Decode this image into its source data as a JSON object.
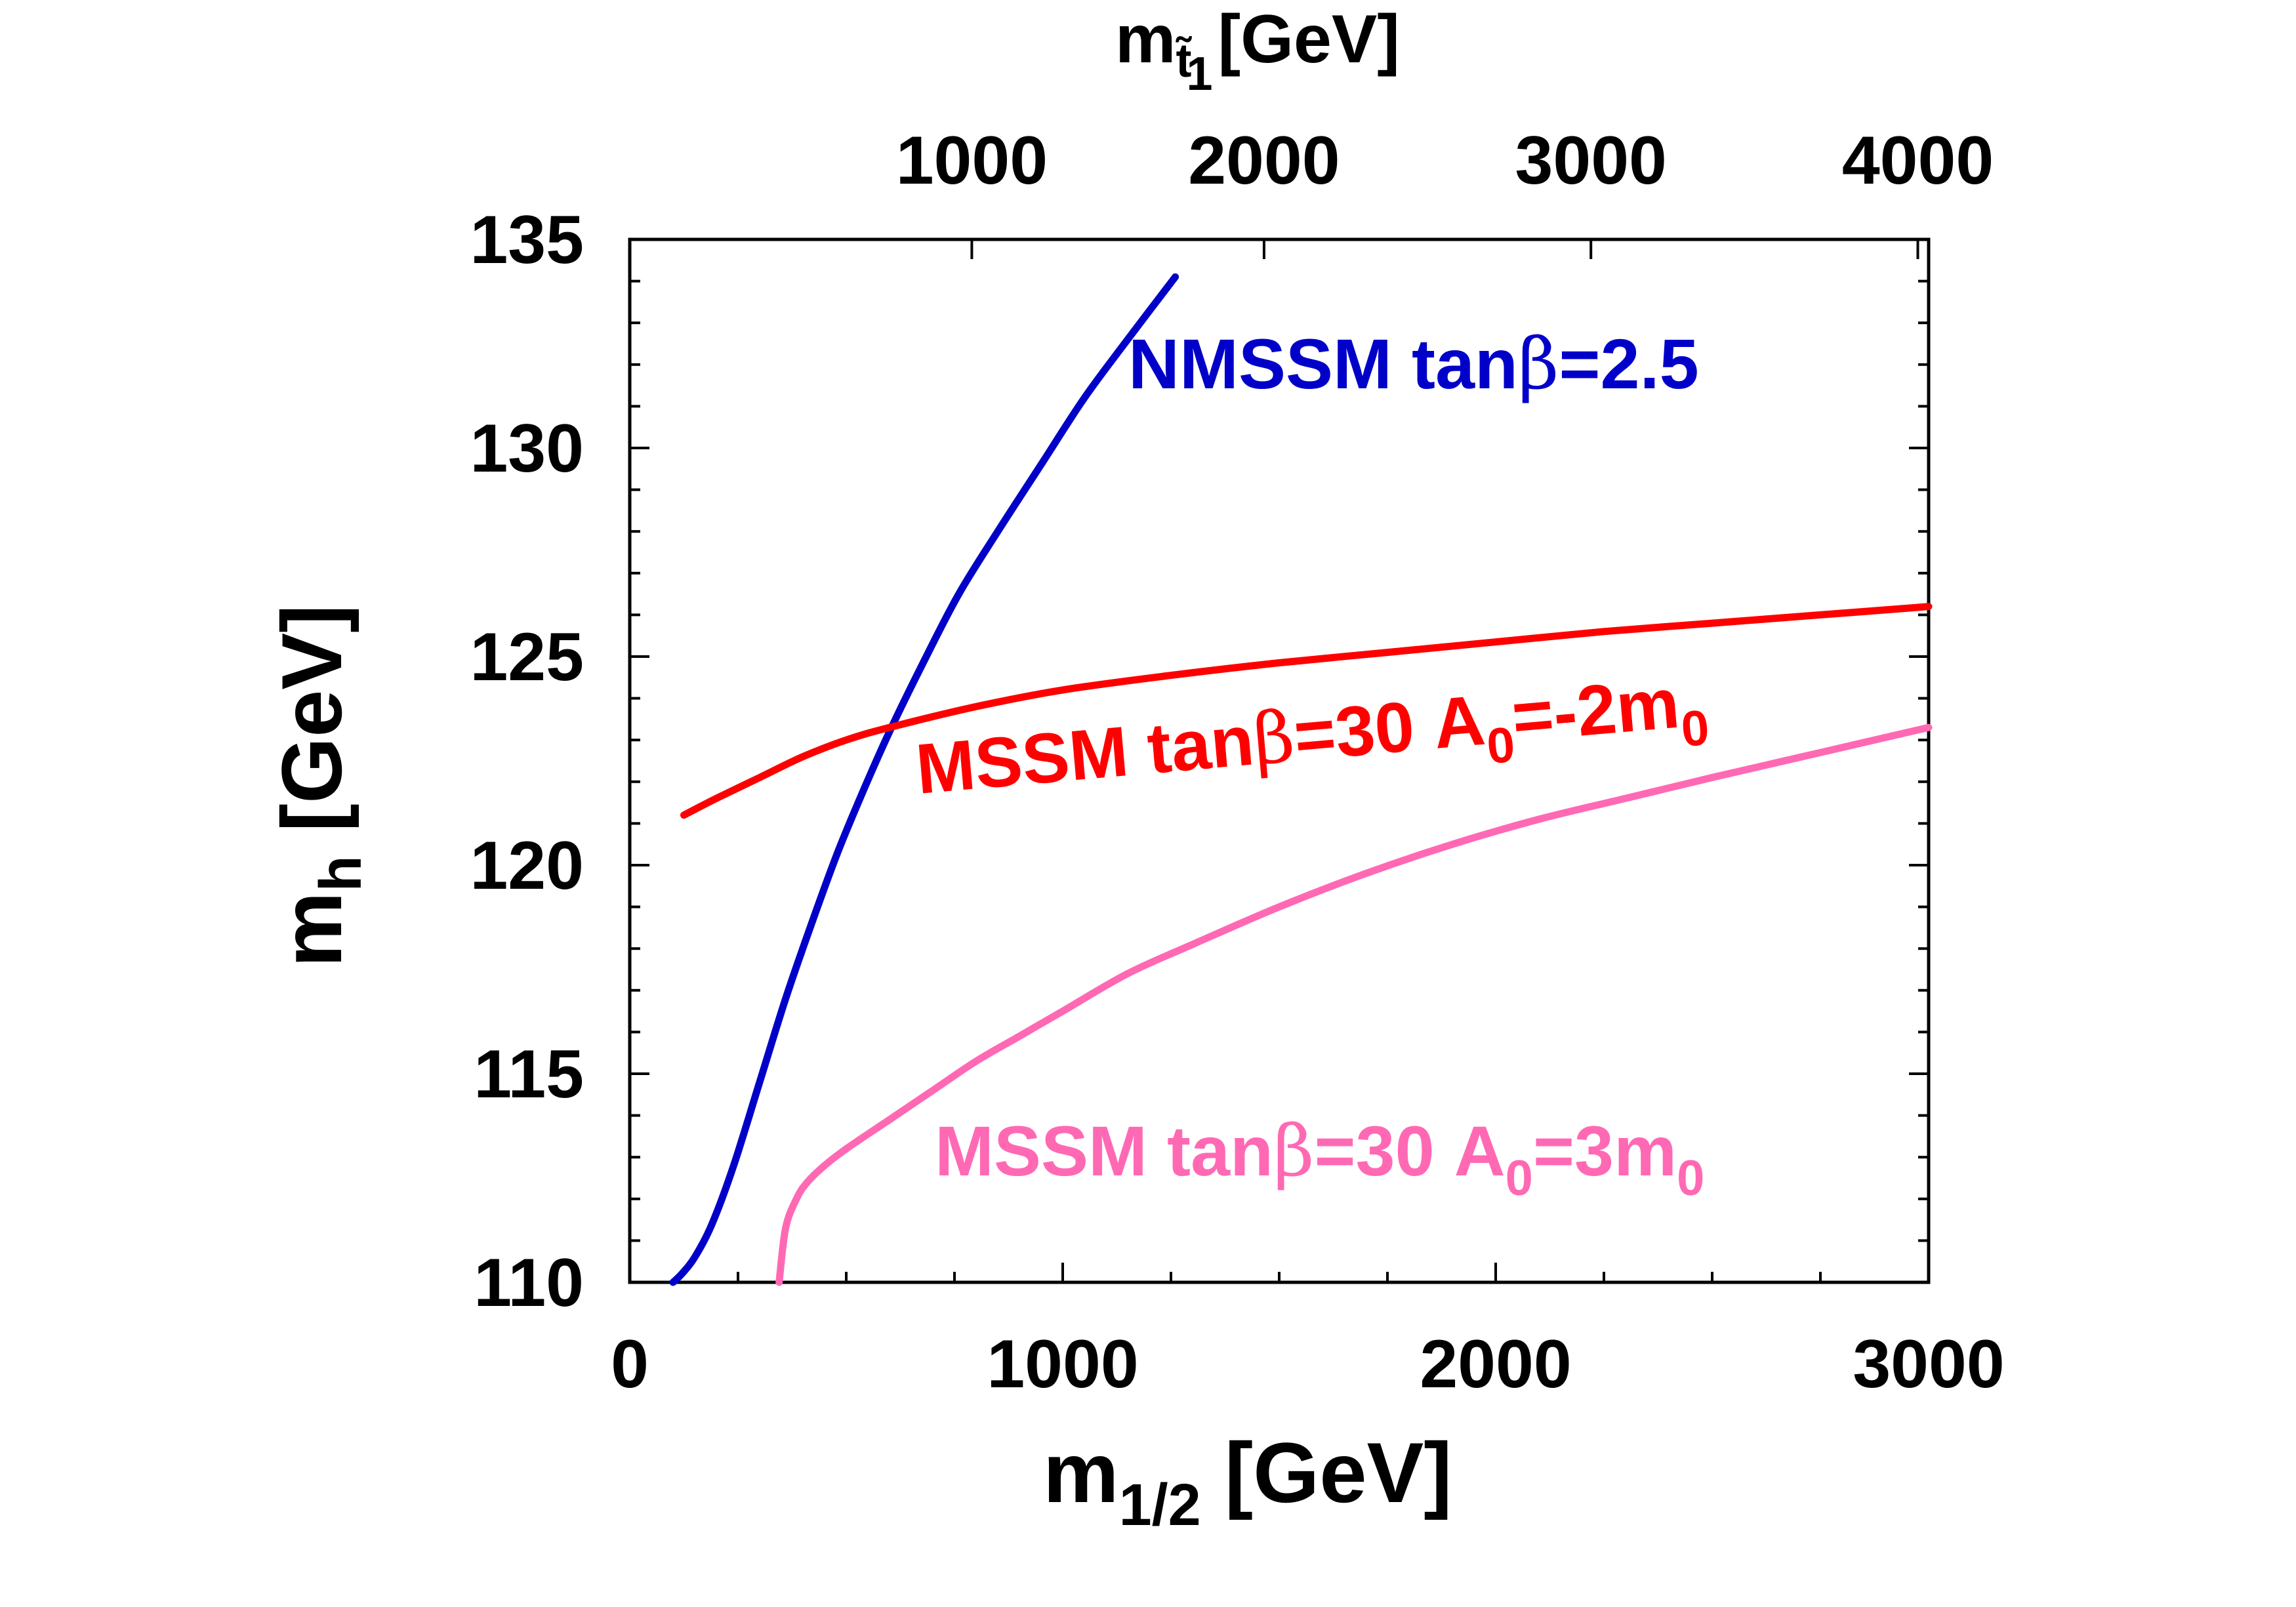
{
  "chart_data": {
    "type": "line",
    "xlabel": {
      "main": "m",
      "sub": "1/2",
      "unit": " [GeV]"
    },
    "ylabel": {
      "main": "m",
      "sub": "h",
      "unit": " [GeV]"
    },
    "top_axis_label": {
      "main": "m",
      "sub": "t̃",
      "subsub": "1",
      "unit": "[GeV]"
    },
    "xlim": [
      0,
      3000
    ],
    "ylim": [
      110,
      135
    ],
    "x_ticks": [
      "0",
      "1000",
      "2000",
      "3000"
    ],
    "x_tick_values": [
      0,
      1000,
      2000,
      3000
    ],
    "y_ticks": [
      "110",
      "115",
      "120",
      "125",
      "130",
      "135"
    ],
    "y_tick_values": [
      110,
      115,
      120,
      125,
      130,
      135
    ],
    "top_ticks": [
      "1000",
      "2000",
      "3000",
      "4000"
    ],
    "top_tick_positions_m12": [
      790,
      1465,
      2220,
      2975
    ],
    "series": [
      {
        "name": "NMSSM tanβ=2.5",
        "label": {
          "prefix": "NMSSM tan",
          "greek": "β",
          "suffix": "=2.5"
        },
        "color": "#0000c8",
        "x": [
          100,
          120,
          150,
          190,
          240,
          300,
          360,
          420,
          480,
          540,
          600,
          680,
          760,
          850,
          950,
          1050,
          1150,
          1260
        ],
        "y": [
          110,
          110.2,
          110.6,
          111.4,
          112.8,
          114.8,
          116.8,
          118.6,
          120.3,
          121.8,
          123.2,
          124.9,
          126.5,
          128.0,
          129.6,
          131.2,
          132.6,
          134.1
        ]
      },
      {
        "name": "MSSM tanβ=30 A0=-2m0",
        "label": {
          "prefix": "MSSM tan",
          "greek": "β",
          "suffix": "=30 A",
          "sub1": "0",
          "mid": "=-2m",
          "sub2": "0"
        },
        "color": "#ff0000",
        "x": [
          125,
          200,
          300,
          400,
          500,
          600,
          800,
          1000,
          1250,
          1500,
          1750,
          2000,
          2250,
          2500,
          2750,
          3000
        ],
        "y": [
          121.2,
          121.6,
          122.1,
          122.6,
          123.0,
          123.3,
          123.8,
          124.2,
          124.55,
          124.85,
          125.1,
          125.35,
          125.6,
          125.8,
          126.0,
          126.2
        ]
      },
      {
        "name": "MSSM tanβ=30 A0=3m0",
        "label": {
          "prefix": "MSSM tan",
          "greek": "β",
          "suffix": "=30 A",
          "sub1": "0",
          "mid": "=3m",
          "sub2": "0"
        },
        "color": "#ff69b4",
        "x": [
          345,
          360,
          385,
          410,
          450,
          500,
          600,
          700,
          800,
          900,
          1000,
          1150,
          1300,
          1500,
          1700,
          1900,
          2100,
          2300,
          2500,
          2750,
          3000
        ],
        "y": [
          110,
          111.3,
          112.0,
          112.4,
          112.8,
          113.2,
          113.9,
          114.6,
          115.3,
          115.9,
          116.5,
          117.4,
          118.1,
          119.0,
          119.8,
          120.5,
          121.1,
          121.6,
          122.1,
          122.7,
          123.3
        ]
      }
    ]
  }
}
